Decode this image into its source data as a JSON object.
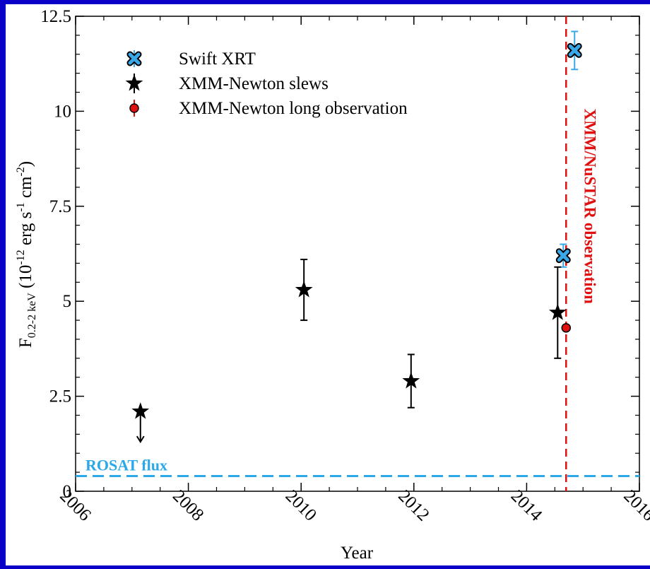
{
  "chart_data": {
    "type": "scatter",
    "xlabel": "Year",
    "ylabel_parts": {
      "F": "F",
      "sub": "0.2-2 keV",
      "open": " (10",
      "exp12": "-12",
      "erg": " erg s",
      "expm1": "-1",
      "cm": " cm",
      "expm2": "-2",
      "close": ")"
    },
    "xlim": [
      2006,
      2016
    ],
    "ylim": [
      0,
      12.5
    ],
    "x_ticks": [
      2006,
      2008,
      2010,
      2012,
      2014,
      2016
    ],
    "x_tick_labels": [
      "2006",
      "2008",
      "2010",
      "2012",
      "2014",
      "2016"
    ],
    "y_ticks": [
      0,
      2.5,
      5,
      7.5,
      10,
      12.5
    ],
    "y_tick_labels": [
      "0",
      "2.5",
      "5",
      "7.5",
      "10",
      "12.5"
    ],
    "grid": false,
    "legend_position": "top-left",
    "series": [
      {
        "name": "Swift XRT",
        "marker": "x-marker",
        "color": "#3aa8e8",
        "points": [
          {
            "x": 2014.65,
            "y": 6.2,
            "err_lo": 0.3,
            "err_hi": 0.3
          },
          {
            "x": 2014.85,
            "y": 11.6,
            "err_lo": 0.5,
            "err_hi": 0.5
          }
        ]
      },
      {
        "name": "XMM-Newton slews",
        "marker": "star",
        "color": "#000000",
        "points": [
          {
            "x": 2007.15,
            "y": 2.1,
            "upper_limit": true,
            "arrow_to": 1.3
          },
          {
            "x": 2010.05,
            "y": 5.3,
            "err_lo": 0.8,
            "err_hi": 0.8
          },
          {
            "x": 2011.95,
            "y": 2.9,
            "err_lo": 0.7,
            "err_hi": 0.7
          },
          {
            "x": 2014.55,
            "y": 4.7,
            "err_lo": 1.2,
            "err_hi": 1.2
          }
        ]
      },
      {
        "name": "XMM-Newton long observation",
        "marker": "circle",
        "color": "#e01010",
        "points": [
          {
            "x": 2014.7,
            "y": 4.3,
            "err_lo": 0.05,
            "err_hi": 0.05
          }
        ]
      }
    ],
    "reference_lines": [
      {
        "orientation": "horizontal",
        "value": 0.4,
        "label": "ROSAT flux",
        "color": "#2aa8e8",
        "style": "dashed"
      },
      {
        "orientation": "vertical",
        "value": 2014.7,
        "label": "XMM/NuSTAR observation",
        "color": "#e01010",
        "style": "dashed"
      }
    ]
  }
}
